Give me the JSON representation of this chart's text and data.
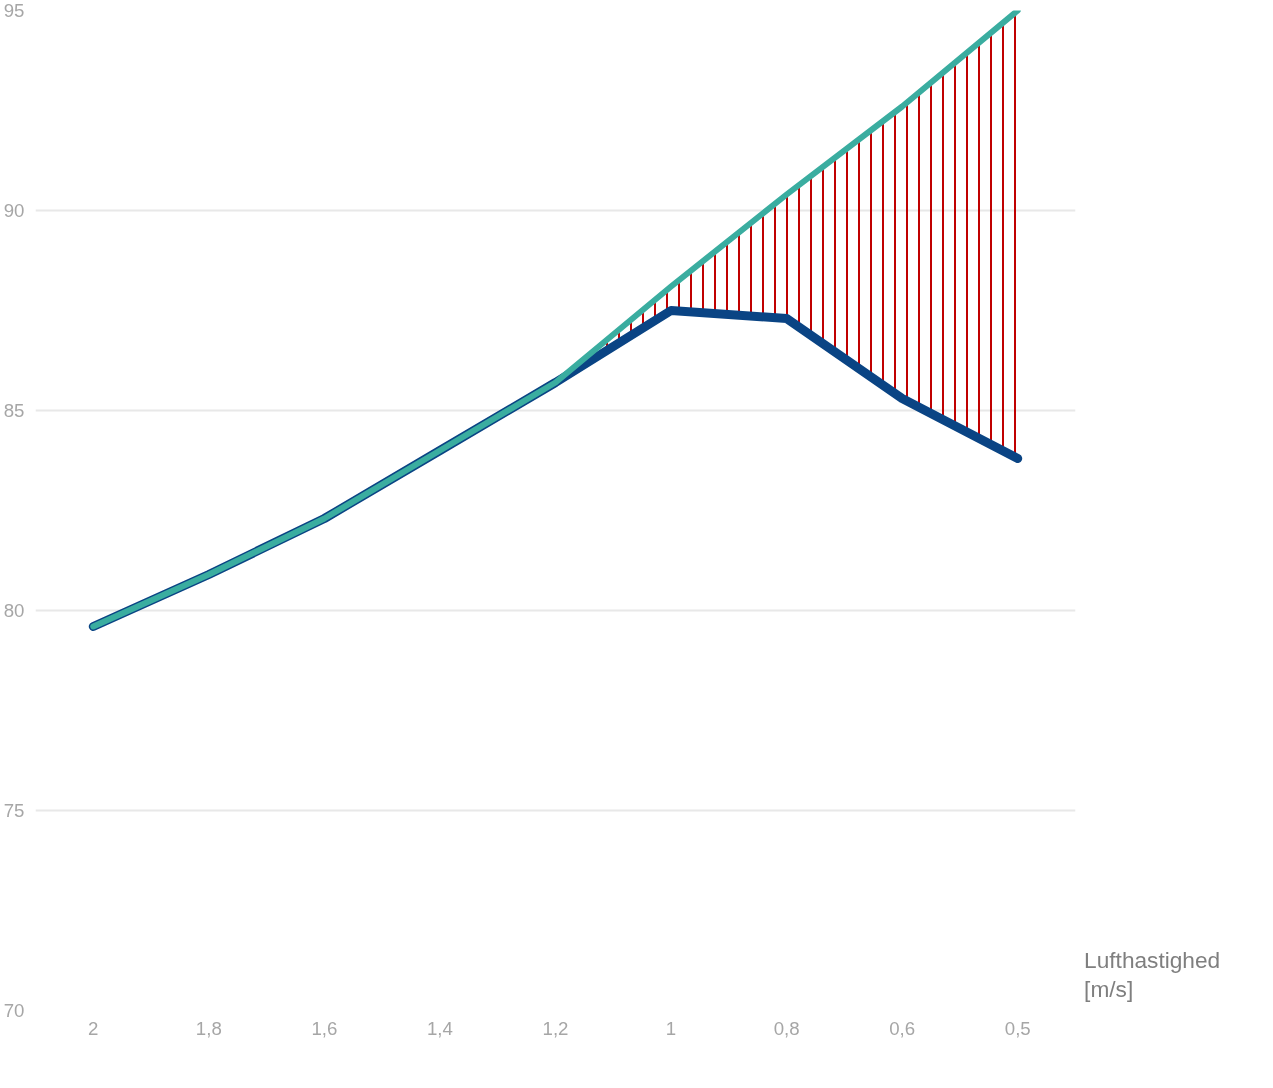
{
  "chart_data": {
    "type": "line",
    "xlabel": "Lufthastighed [m/s]",
    "categories": [
      "2",
      "1,8",
      "1,6",
      "1,4",
      "1,2",
      "1",
      "0,8",
      "0,6",
      "0,5"
    ],
    "series": [
      {
        "color": "#0a4484",
        "values": [
          79.6,
          80.9,
          82.3,
          84.0,
          85.7,
          87.5,
          87.3,
          85.3,
          83.8
        ]
      },
      {
        "color": "#3aada0",
        "values": [
          79.6,
          80.9,
          82.3,
          84.0,
          85.7,
          88.1,
          90.4,
          92.6,
          95.0
        ],
        "lower": [
          null,
          null,
          null,
          null,
          85.7,
          87.5,
          87.3,
          85.3,
          83.8
        ],
        "upper": [
          null,
          null,
          null,
          null,
          85.7,
          88.1,
          90.4,
          92.6,
          95.0
        ]
      }
    ],
    "ylim": [
      70,
      95
    ],
    "yticks": [
      70,
      75,
      80,
      85,
      90,
      95
    ],
    "grid": "y",
    "marker": "none",
    "line_style": "solid"
  }
}
